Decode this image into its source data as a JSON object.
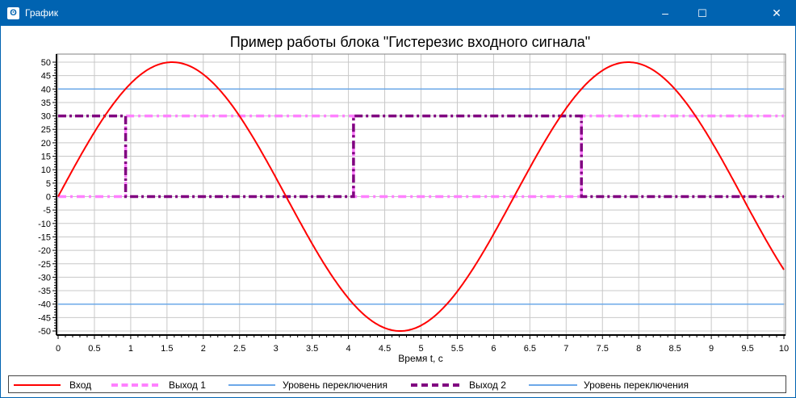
{
  "window": {
    "title": "График",
    "minimize": "–",
    "maximize": "☐",
    "close": "✕",
    "icon": "app-logo-icon"
  },
  "chart_data": {
    "type": "line",
    "title": "Пример работы блока \"Гистерезис входного сигнала\"",
    "xlabel": "Время t, с",
    "ylabel": "",
    "xlim": [
      0,
      10
    ],
    "ylim": [
      -51.5,
      53
    ],
    "x_ticks": [
      "0",
      "0.5",
      "1",
      "1.5",
      "2",
      "2.5",
      "3",
      "3.5",
      "4",
      "4.5",
      "5",
      "5.5",
      "6",
      "6.5",
      "7",
      "7.5",
      "8",
      "8.5",
      "9",
      "9.5",
      "10"
    ],
    "y_ticks": [
      "50",
      "45",
      "40",
      "35",
      "30",
      "25",
      "20",
      "15",
      "10",
      "5",
      "0",
      "-5",
      "-10",
      "-15",
      "-20",
      "-25",
      "-30",
      "-35",
      "-40",
      "-45",
      "-50"
    ],
    "grid": true,
    "legend_position": "bottom",
    "series": [
      {
        "name": "Вход",
        "color": "#FF0000",
        "style": "solid",
        "function": "amplitude*sin(t)",
        "amplitude": 50
      },
      {
        "name": "Выход 1",
        "color": "#FF80FF",
        "style": "dashdot",
        "points": [
          [
            0,
            0
          ],
          [
            0.93,
            0
          ],
          [
            0.93,
            30
          ],
          [
            4.07,
            30
          ],
          [
            4.07,
            0
          ],
          [
            7.21,
            0
          ],
          [
            7.21,
            30
          ],
          [
            10,
            30
          ]
        ]
      },
      {
        "name": "Уровень переключения",
        "color": "#6CA8E8",
        "style": "solid",
        "points": [
          [
            0,
            40
          ],
          [
            10,
            40
          ]
        ]
      },
      {
        "name": "Выход 2",
        "color": "#800080",
        "style": "dashdot",
        "points": [
          [
            0,
            30
          ],
          [
            0.93,
            30
          ],
          [
            0.93,
            0
          ],
          [
            4.07,
            0
          ],
          [
            4.07,
            30
          ],
          [
            7.21,
            30
          ],
          [
            7.21,
            0
          ],
          [
            10,
            0
          ]
        ]
      },
      {
        "name": "Уровень переключения",
        "color": "#6CA8E8",
        "style": "solid",
        "points": [
          [
            0,
            -40
          ],
          [
            10,
            -40
          ]
        ]
      }
    ]
  }
}
